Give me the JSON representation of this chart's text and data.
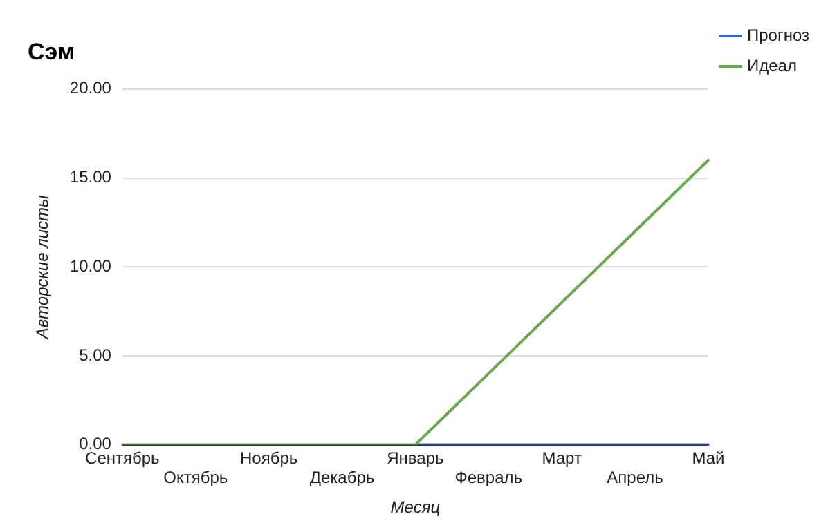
{
  "chart_data": {
    "type": "line",
    "title": "Сэм",
    "xlabel": "Месяц",
    "ylabel": "Авторские листы",
    "categories": [
      "Сентябрь",
      "Октябрь",
      "Ноябрь",
      "Декабрь",
      "Январь",
      "Февраль",
      "Март",
      "Апрель",
      "Май"
    ],
    "series": [
      {
        "name": "Прогноз",
        "color": "#3366cc",
        "values": [
          null,
          null,
          null,
          null,
          0,
          0,
          0,
          0,
          0
        ]
      },
      {
        "name": "Идеал",
        "color": "#6aa84f",
        "values": [
          0,
          0,
          0,
          0,
          0,
          4,
          8,
          12,
          16
        ]
      }
    ],
    "ylim": [
      0,
      20
    ],
    "yticks": [
      {
        "value": 0,
        "label": "0.00"
      },
      {
        "value": 5,
        "label": "5.00"
      },
      {
        "value": 10,
        "label": "10.00"
      },
      {
        "value": 15,
        "label": "15.00"
      },
      {
        "value": 20,
        "label": "20.00"
      }
    ],
    "grid": "y",
    "legend": "top right",
    "marker": "none",
    "line_style": "solid"
  }
}
